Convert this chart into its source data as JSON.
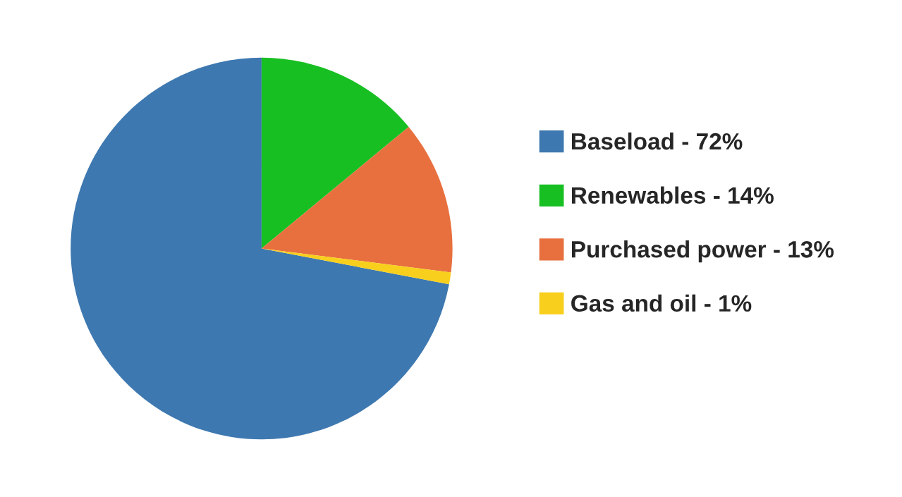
{
  "chart_data": {
    "type": "pie",
    "categories": [
      "Baseload - 72%",
      "Renewables - 14%",
      "Purchased power - 13%",
      "Gas and oil - 1%"
    ],
    "values": [
      72,
      14,
      13,
      1
    ],
    "colors": [
      "#3e78b0",
      "#17bf22",
      "#e8703f",
      "#f8cf1c"
    ],
    "legend": "right"
  }
}
